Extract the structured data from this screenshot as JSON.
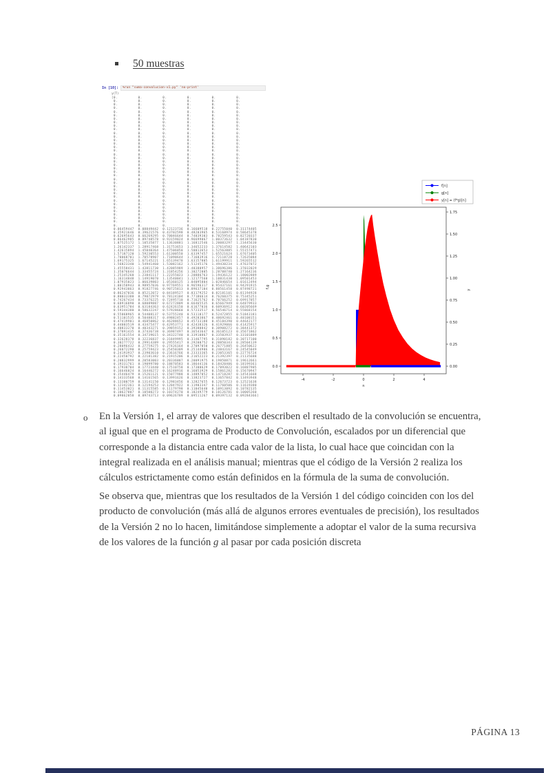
{
  "page": {
    "footer": "PÁGINA 13",
    "background": "#ffffff",
    "bottom_bar_color": "#25305c"
  },
  "heading": {
    "text": "50 muestras"
  },
  "console": {
    "prompt": "In [10]:",
    "command": "%run \"suma-convolucion-v1.py\" 'no-print'",
    "output_header": "y(T)",
    "prompt_color": "#2f2fb0",
    "command_color": "#9c3a22",
    "text_color": "#5a5a5a",
    "zero_row_first": "[0.          0.          0.          0.          0.          0.",
    "zero_row": " 0.          0.          0.          0.          0.          0.",
    "zero_row_count": 37,
    "values_per_row": 6,
    "value_row_specs": [
      {
        "s": 0.06459447,
        "f": 1.37
      },
      {
        "s": 0.35921646,
        "f": 1.103
      },
      {
        "s": 0.62695643,
        "f": 1.057
      },
      {
        "s": 0.86462985,
        "f": 1.038
      },
      {
        "s": 1.07525172,
        "f": 1.028
      },
      {
        "s": 1.26142337,
        "f": 1.022
      },
      {
        "s": 1.42615894,
        "f": 1.017
      },
      {
        "s": 1.5718712,
        "f": 1.013
      },
      {
        "s": 1.70068701,
        "f": 1.003
      },
      {
        "s": 1.69175325,
        "f": 0.988
      },
      {
        "s": 1.5682334,
        "f": 0.988
      },
      {
        "s": 1.45558431,
        "f": 0.988
      },
      {
        "s": 1.35076644,
        "f": 0.988
      },
      {
        "s": 1.2534526,
        "f": 0.988
      },
      {
        "s": 1.16314848,
        "f": 0.988
      },
      {
        "s": 1.07935023,
        "f": 0.988
      },
      {
        "s": 1.00158943,
        "f": 0.988
      },
      {
        "s": 0.92943063,
        "f": 0.988
      },
      {
        "s": 0.86247036,
        "f": 0.988
      },
      {
        "s": 0.8003338,
        "f": 0.988
      },
      {
        "s": 0.74267434,
        "f": 0.988
      },
      {
        "s": 0.6891689,
        "f": 0.988
      },
      {
        "s": 0.63951784,
        "f": 0.988
      },
      {
        "s": 0.5934438,
        "f": 0.988
      },
      {
        "s": 0.55068965,
        "f": 0.988
      },
      {
        "s": 0.51101535,
        "f": 0.988
      },
      {
        "s": 0.47419901,
        "f": 0.988
      },
      {
        "s": 0.44003519,
        "f": 0.988
      },
      {
        "s": 0.4083327,
        "f": 0.988
      },
      {
        "s": 0.37891435,
        "f": 0.988
      },
      {
        "s": 0.35161554,
        "f": 0.988
      },
      {
        "s": 0.32628378,
        "f": 0.988
      },
      {
        "s": 0.30277722,
        "f": 0.988
      },
      {
        "s": 0.28096432,
        "f": 0.988
      },
      {
        "s": 0.2607229,
        "f": 0.988
      },
      {
        "s": 0.24193937,
        "f": 0.988
      },
      {
        "s": 0.22450792,
        "f": 0.988
      },
      {
        "s": 0.20832999,
        "f": 0.988
      },
      {
        "s": 0.19331761,
        "f": 0.988
      },
      {
        "s": 0.17938704,
        "f": 0.988
      },
      {
        "s": 0.16646024,
        "f": 0.988
      },
      {
        "s": 0.15446479,
        "f": 0.988
      },
      {
        "s": 0.14333568,
        "f": 0.988
      },
      {
        "s": 0.13300759,
        "f": 0.988
      },
      {
        "s": 0.12342361,
        "f": 0.988
      },
      {
        "s": 0.11453021,
        "f": 0.988
      },
      {
        "s": 0.10627807,
        "f": 0.988
      },
      {
        "s": 0.09862058,
        "f": 0.988
      }
    ]
  },
  "paragraphs": [
    {
      "bullet": "o",
      "lines": [
        "En la Versión 1, el array de valores que describen el resultado de la convolución se encuentra,",
        "al igual que en el programa de Producto de Convolución, escalados por un diferencial que",
        "corresponde a la distancia entre cada valor de la lista, lo cual hace que coincidan con la",
        "integral realizada en el análisis manual; mientras que el código de la Versión 2 realiza los",
        "cálculos estrictamente como están definidos en la fórmula de la suma de convolución."
      ]
    },
    {
      "bullet": "",
      "lines": [
        "Se observa que, mientras que los resultados de la Versión 1 del código coinciden con los del",
        "producto de convolución (más allá de algunos errores eventuales de precisión), los resultados",
        "de la Versión 2 no lo hacen, limitándose simplemente a adoptar el valor de la suma recursiva",
        "de los valores de la función *g* al pasar por cada posición discreta"
      ]
    }
  ],
  "chart_data": {
    "type": "stem",
    "title": "",
    "xlabel": "n",
    "ylabel_left": "f,g",
    "ylabel_right": "y",
    "xlim": [
      -5.5,
      5.5
    ],
    "ylim_left": [
      -0.14,
      2.82
    ],
    "ylim_right": [
      -0.09,
      1.81
    ],
    "grid": false,
    "legend_position": "upper right, outside axes",
    "xticks": [
      "-4",
      "-2",
      "0",
      "2",
      "4"
    ],
    "yticks_left": [
      "0.0",
      "0.5",
      "1.0",
      "1.5",
      "2.0",
      "2.5"
    ],
    "yticks_right": [
      "0.00",
      "0.25",
      "0.50",
      "0.75",
      "1.00",
      "1.25",
      "1.50",
      "1.75"
    ],
    "legend": [
      {
        "label": "f[n]",
        "color": "#0000ff"
      },
      {
        "label": "g[n]",
        "color": "#008000"
      },
      {
        "label": "y[n] = (f*g)[n]",
        "color": "#ff0000"
      }
    ],
    "series": [
      {
        "name": "f[n]",
        "axis": "left",
        "color": "#0000ff",
        "desc": "rectangular pulse, height 1.0 from n=-0.5 to n=0.5",
        "shape": [
          [
            -0.5,
            0
          ],
          [
            -0.5,
            1.0
          ],
          [
            0.5,
            1.0
          ],
          [
            0.5,
            0
          ]
        ],
        "baseline": [
          0.48,
          5.1
        ]
      },
      {
        "name": "g[n]",
        "axis": "left",
        "color": "#008000",
        "desc": "exponential decay spike at n=0, peak ≈ 2.7",
        "shape": [
          [
            -0.03,
            0
          ],
          [
            0.0,
            2.68
          ],
          [
            0.05,
            2.58
          ],
          [
            0.09,
            2.15
          ],
          [
            0.13,
            1.68
          ],
          [
            0.17,
            1.28
          ],
          [
            0.22,
            0.9
          ],
          [
            0.27,
            0.6
          ],
          [
            0.33,
            0.35
          ],
          [
            0.39,
            0.17
          ],
          [
            0.45,
            0.06
          ],
          [
            0.5,
            0
          ]
        ],
        "baseline": [
          -0.5,
          0.45
        ]
      },
      {
        "name": "y[n] = (f*g)[n]",
        "axis": "right",
        "color": "#ff0000",
        "desc": "convolution result, rises from n=-0.5, peak ≈ 1.72 at n≈0.55, exponential decay to ≈0.05 at n=5",
        "shape": [
          [
            -0.52,
            0
          ],
          [
            -0.5,
            0.18
          ],
          [
            -0.45,
            0.33
          ],
          [
            -0.38,
            0.52
          ],
          [
            -0.3,
            0.7
          ],
          [
            -0.22,
            0.85
          ],
          [
            -0.14,
            0.99
          ],
          [
            -0.06,
            1.12
          ],
          [
            0.02,
            1.25
          ],
          [
            0.1,
            1.37
          ],
          [
            0.18,
            1.47
          ],
          [
            0.26,
            1.56
          ],
          [
            0.34,
            1.63
          ],
          [
            0.42,
            1.68
          ],
          [
            0.5,
            1.715
          ],
          [
            0.56,
            1.72
          ],
          [
            0.64,
            1.6
          ],
          [
            0.75,
            1.47
          ],
          [
            0.9,
            1.31
          ],
          [
            1.1,
            1.11
          ],
          [
            1.3,
            0.94
          ],
          [
            1.5,
            0.8
          ],
          [
            1.75,
            0.645
          ],
          [
            2.0,
            0.525
          ],
          [
            2.3,
            0.41
          ],
          [
            2.6,
            0.325
          ],
          [
            2.9,
            0.255
          ],
          [
            3.2,
            0.2
          ],
          [
            3.5,
            0.158
          ],
          [
            3.8,
            0.125
          ],
          [
            4.1,
            0.098
          ],
          [
            4.4,
            0.077
          ],
          [
            4.7,
            0.061
          ],
          [
            5.0,
            0.048
          ],
          [
            5.05,
            0.045
          ],
          [
            5.05,
            0
          ]
        ],
        "baseline": [
          -5.1,
          -0.52
        ]
      }
    ]
  }
}
